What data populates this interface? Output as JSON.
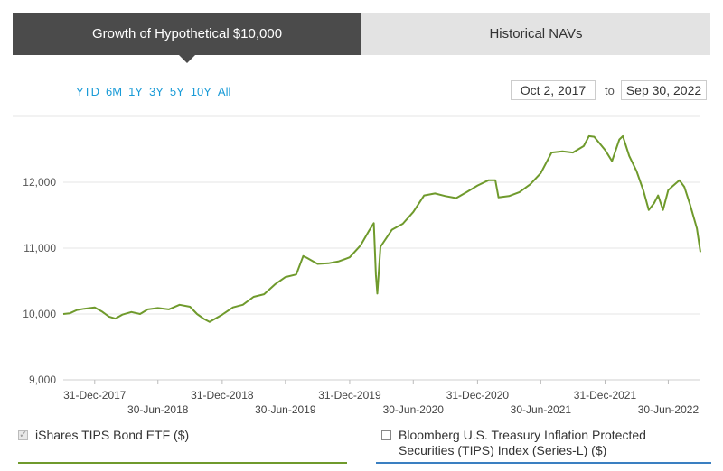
{
  "tabs": [
    {
      "label": "Growth of Hypothetical $10,000",
      "active": true
    },
    {
      "label": "Historical NAVs",
      "active": false
    }
  ],
  "ranges": [
    "YTD",
    "6M",
    "1Y",
    "3Y",
    "5Y",
    "10Y",
    "All"
  ],
  "date_range": {
    "start": "Oct 2, 2017",
    "to_label": "to",
    "end": "Sep 30, 2022"
  },
  "colors": {
    "series": "#6f9a2c",
    "accent": "#1a9bd7",
    "index": "#3a7fc1"
  },
  "legend": [
    {
      "label": "iShares TIPS Bond ETF ($)",
      "checked": true,
      "color": "#6f9a2c"
    },
    {
      "label": "Bloomberg U.S. Treasury Inflation Protected Securities (TIPS) Index (Series-L) ($)",
      "checked": false,
      "color": "#3a7fc1"
    }
  ],
  "chart_data": {
    "type": "line",
    "grid": true,
    "ylim": [
      9000,
      13000
    ],
    "yticks": [
      9000,
      10000,
      11000,
      12000
    ],
    "ytick_labels": [
      "9,000",
      "10,000",
      "11,000",
      "12,000"
    ],
    "xlim": [
      "2017-10-02",
      "2022-09-30"
    ],
    "xticks": [
      {
        "date": "2017-12-31",
        "label": "31-Dec-2017",
        "row": 1
      },
      {
        "date": "2018-06-30",
        "label": "30-Jun-2018",
        "row": 2
      },
      {
        "date": "2018-12-31",
        "label": "31-Dec-2018",
        "row": 1
      },
      {
        "date": "2019-06-30",
        "label": "30-Jun-2019",
        "row": 2
      },
      {
        "date": "2019-12-31",
        "label": "31-Dec-2019",
        "row": 1
      },
      {
        "date": "2020-06-30",
        "label": "30-Jun-2020",
        "row": 2
      },
      {
        "date": "2020-12-31",
        "label": "31-Dec-2020",
        "row": 1
      },
      {
        "date": "2021-06-30",
        "label": "30-Jun-2021",
        "row": 2
      },
      {
        "date": "2021-12-31",
        "label": "31-Dec-2021",
        "row": 1
      },
      {
        "date": "2022-06-30",
        "label": "30-Jun-2022",
        "row": 2
      }
    ],
    "series": [
      {
        "name": "iShares TIPS Bond ETF ($)",
        "color": "#6f9a2c",
        "points": [
          [
            "2017-10-02",
            10000
          ],
          [
            "2017-10-20",
            10010
          ],
          [
            "2017-11-10",
            10060
          ],
          [
            "2017-12-01",
            10080
          ],
          [
            "2017-12-31",
            10100
          ],
          [
            "2018-01-20",
            10040
          ],
          [
            "2018-02-10",
            9960
          ],
          [
            "2018-02-28",
            9930
          ],
          [
            "2018-03-20",
            9990
          ],
          [
            "2018-04-15",
            10030
          ],
          [
            "2018-05-10",
            10000
          ],
          [
            "2018-06-01",
            10070
          ],
          [
            "2018-06-30",
            10090
          ],
          [
            "2018-07-31",
            10070
          ],
          [
            "2018-08-31",
            10140
          ],
          [
            "2018-09-30",
            10110
          ],
          [
            "2018-10-20",
            10000
          ],
          [
            "2018-11-10",
            9920
          ],
          [
            "2018-11-25",
            9880
          ],
          [
            "2018-12-31",
            9990
          ],
          [
            "2019-01-31",
            10100
          ],
          [
            "2019-02-28",
            10140
          ],
          [
            "2019-03-31",
            10260
          ],
          [
            "2019-04-30",
            10300
          ],
          [
            "2019-05-31",
            10450
          ],
          [
            "2019-06-30",
            10560
          ],
          [
            "2019-07-31",
            10600
          ],
          [
            "2019-08-20",
            10880
          ],
          [
            "2019-08-31",
            10850
          ],
          [
            "2019-09-30",
            10760
          ],
          [
            "2019-10-31",
            10770
          ],
          [
            "2019-11-30",
            10800
          ],
          [
            "2019-12-31",
            10860
          ],
          [
            "2020-01-31",
            11040
          ],
          [
            "2020-02-25",
            11270
          ],
          [
            "2020-03-09",
            11380
          ],
          [
            "2020-03-15",
            10600
          ],
          [
            "2020-03-19",
            10310
          ],
          [
            "2020-03-28",
            11020
          ],
          [
            "2020-04-30",
            11280
          ],
          [
            "2020-05-31",
            11370
          ],
          [
            "2020-06-30",
            11550
          ],
          [
            "2020-07-31",
            11800
          ],
          [
            "2020-08-31",
            11830
          ],
          [
            "2020-09-30",
            11790
          ],
          [
            "2020-10-31",
            11760
          ],
          [
            "2020-11-30",
            11850
          ],
          [
            "2020-12-31",
            11950
          ],
          [
            "2021-01-31",
            12030
          ],
          [
            "2021-02-20",
            12030
          ],
          [
            "2021-03-01",
            11770
          ],
          [
            "2021-03-31",
            11790
          ],
          [
            "2021-04-30",
            11850
          ],
          [
            "2021-05-31",
            11970
          ],
          [
            "2021-06-30",
            12140
          ],
          [
            "2021-07-31",
            12450
          ],
          [
            "2021-08-31",
            12470
          ],
          [
            "2021-09-30",
            12450
          ],
          [
            "2021-10-31",
            12550
          ],
          [
            "2021-11-15",
            12700
          ],
          [
            "2021-11-30",
            12690
          ],
          [
            "2021-12-31",
            12490
          ],
          [
            "2022-01-20",
            12320
          ],
          [
            "2022-02-10",
            12650
          ],
          [
            "2022-02-20",
            12700
          ],
          [
            "2022-03-10",
            12400
          ],
          [
            "2022-03-31",
            12170
          ],
          [
            "2022-04-20",
            11870
          ],
          [
            "2022-05-05",
            11580
          ],
          [
            "2022-05-20",
            11680
          ],
          [
            "2022-06-01",
            11800
          ],
          [
            "2022-06-15",
            11580
          ],
          [
            "2022-06-30",
            11880
          ],
          [
            "2022-07-10",
            11930
          ],
          [
            "2022-08-01",
            12030
          ],
          [
            "2022-08-15",
            11930
          ],
          [
            "2022-09-01",
            11650
          ],
          [
            "2022-09-20",
            11300
          ],
          [
            "2022-09-30",
            10940
          ]
        ]
      }
    ]
  }
}
